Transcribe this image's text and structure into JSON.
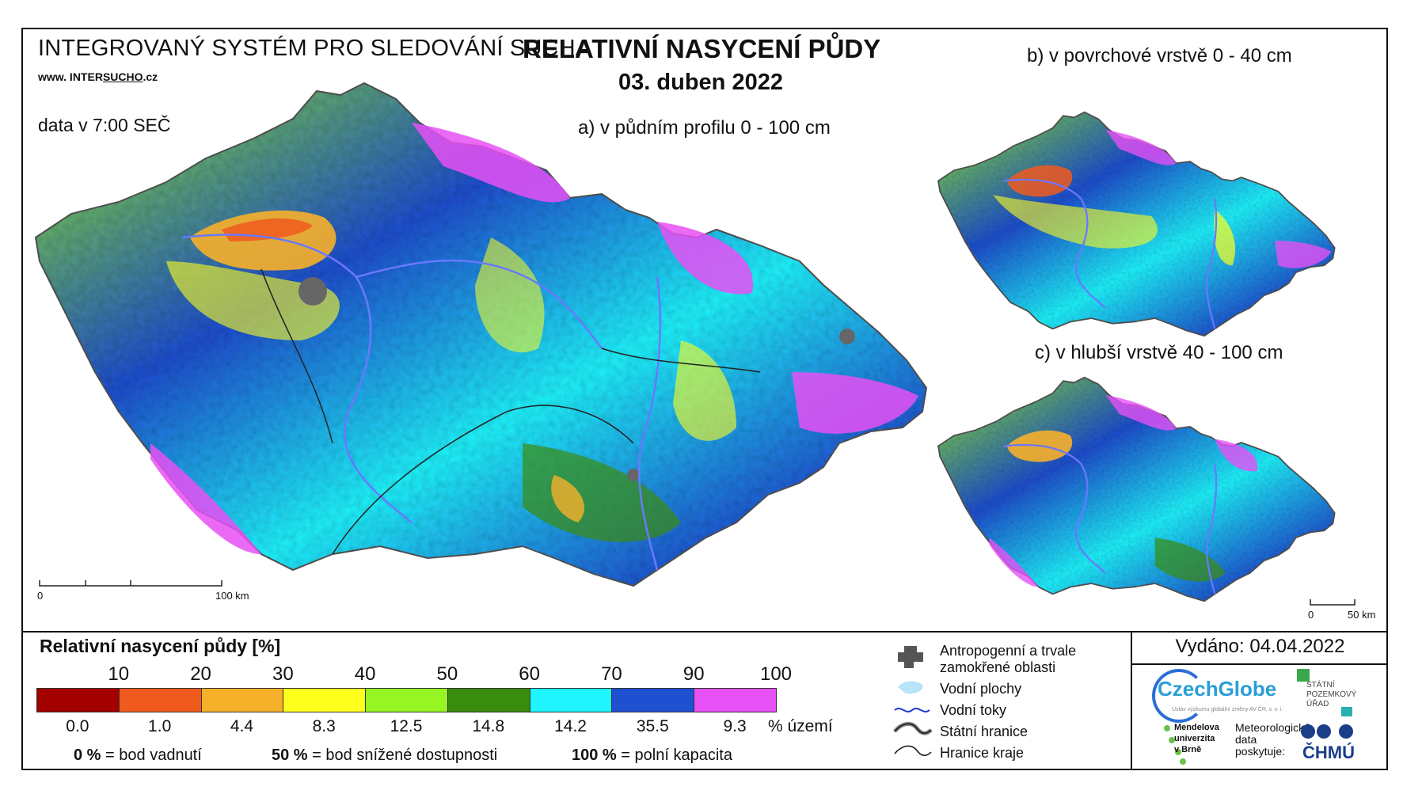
{
  "header": {
    "system_name": "INTEGROVANÝ SYSTÉM PRO SLEDOVÁNÍ SUCHA",
    "url_prefix": "www. INTER",
    "url_mid": "SUCHO",
    "url_suffix": ".cz",
    "data_time": "data v 7:00 SEČ",
    "title": "RELATIVNÍ NASYCENÍ PŮDY",
    "date": "03. duben 2022"
  },
  "maps": {
    "a_label": "a) v půdním profilu 0 - 100 cm",
    "b_label": "b) v povrchové vrstvě 0 - 40 cm",
    "c_label": "c) v hlubší vrstvě 40 - 100 cm",
    "scale_main": {
      "zero": "0",
      "end": "100 km"
    },
    "scale_small": {
      "zero": "0",
      "end": "50 km"
    }
  },
  "legend": {
    "title": "Relativní nasycení půdy [%]",
    "ticks": [
      "10",
      "20",
      "30",
      "40",
      "50",
      "60",
      "70",
      "90",
      "100"
    ],
    "classes": [
      {
        "color": "#a30000",
        "share": "0.0"
      },
      {
        "color": "#f05a1e",
        "share": "1.0"
      },
      {
        "color": "#f7b02a",
        "share": "4.4"
      },
      {
        "color": "#ffff1e",
        "share": "8.3"
      },
      {
        "color": "#96f522",
        "share": "12.5"
      },
      {
        "color": "#3a8c0e",
        "share": "14.8"
      },
      {
        "color": "#1ef5ff",
        "share": "14.2"
      },
      {
        "color": "#1e50d2",
        "share": "35.5"
      },
      {
        "color": "#e650f5",
        "share": "9.3"
      }
    ],
    "share_unit": "% území",
    "def_0_value": "0 %",
    "def_0_text": "= bod vadnutí",
    "def_50_value": "50 %",
    "def_50_text": "= bod snížené dostupnosti",
    "def_100_value": "100 %",
    "def_100_text": "= polní kapacita"
  },
  "map_legend": {
    "anthropogenic": "Antropogenní a trvale",
    "anthropogenic2": "zamokřené oblasti",
    "water_bodies": "Vodní plochy",
    "streams": "Vodní toky",
    "state_border": "Státní hranice",
    "region_border": "Hranice kraje"
  },
  "footer": {
    "issued": "Vydáno: 04.04.2022",
    "czechglobe": "CzechGlobe",
    "czechglobe_sub": "Ústav výzkumu globální změny AV ČR, v. v. i.",
    "spu_line1": "STÁTNÍ",
    "spu_line2": "POZEMKOVÝ",
    "spu_line3": "ÚŘAD",
    "mendel_line1": "Mendelova",
    "mendel_line2": "univerzita",
    "mendel_line3": "v Brně",
    "meteo_line1": "Meteorologická",
    "meteo_line2": "data",
    "meteo_line3": "poskytuje:",
    "chmu": "ČHMÚ"
  }
}
